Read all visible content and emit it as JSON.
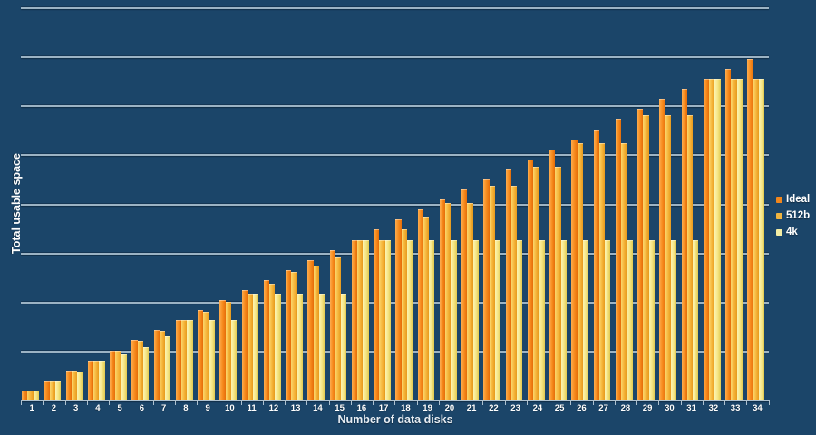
{
  "axes": {
    "x_title": "Number of data disks",
    "y_title": "Total usable space"
  },
  "legend": {
    "position": "right",
    "items": [
      {
        "label": "Ideal",
        "swatch_color": "#F1861C"
      },
      {
        "label": "512b",
        "swatch_color": "#EFB440"
      },
      {
        "label": "4k",
        "swatch_color": "#F3EDA5"
      }
    ]
  },
  "colors": {
    "background": "#1B4569",
    "gridline": "#A8BDCC",
    "axis": "#AFC2D0",
    "label_text": "#FFFFFF"
  },
  "chart_data": {
    "type": "bar",
    "title": "",
    "xlabel": "Number of data disks",
    "ylabel": "Total usable space",
    "categories": [
      "1",
      "2",
      "3",
      "4",
      "5",
      "6",
      "7",
      "8",
      "9",
      "10",
      "11",
      "12",
      "13",
      "14",
      "15",
      "16",
      "17",
      "18",
      "19",
      "20",
      "21",
      "22",
      "23",
      "24",
      "25",
      "26",
      "27",
      "28",
      "29",
      "30",
      "31",
      "32",
      "33",
      "34"
    ],
    "series": [
      {
        "name": "Ideal",
        "color": "#F1861C",
        "gradient": [
          "#FDAD50",
          "#F78C1E",
          "#E56C08"
        ],
        "values": [
          1,
          2,
          3,
          4,
          5,
          6,
          7,
          8,
          9,
          10,
          11,
          12,
          13,
          14,
          15,
          16,
          17,
          18,
          19,
          20,
          21,
          22,
          23,
          24,
          25,
          26,
          27,
          28,
          29,
          30,
          31,
          32,
          33,
          34
        ]
      },
      {
        "name": "512b",
        "color": "#EFB440",
        "gradient": [
          "#FBD76D",
          "#F6B63C",
          "#E6991C"
        ],
        "values": [
          1,
          2,
          2.98,
          4,
          4.92,
          5.95,
          6.92,
          8,
          8.83,
          9.85,
          10.67,
          11.64,
          12.8,
          13.47,
          14.22,
          16,
          16,
          17.07,
          18.29,
          19.69,
          19.69,
          21.33,
          21.33,
          23.27,
          23.27,
          25.6,
          25.6,
          25.6,
          28.44,
          28.44,
          28.44,
          32,
          32,
          32
        ]
      },
      {
        "name": "4k",
        "color": "#F3EDA5",
        "gradient": [
          "#FCF5B4",
          "#F6E687",
          "#E2C94F"
        ],
        "values": [
          1,
          2,
          2.91,
          4,
          4.57,
          5.33,
          6.4,
          8,
          8,
          8,
          10.67,
          10.67,
          10.67,
          10.67,
          10.67,
          16,
          16,
          16,
          16,
          16,
          16,
          16,
          16,
          16,
          16,
          16,
          16,
          16,
          16,
          16,
          16,
          32,
          32,
          32
        ]
      }
    ],
    "ylim": [
      0,
      40
    ],
    "y_tick_labels_visible": false,
    "gridline_count": 8,
    "grid": true,
    "legend_position": "right"
  }
}
